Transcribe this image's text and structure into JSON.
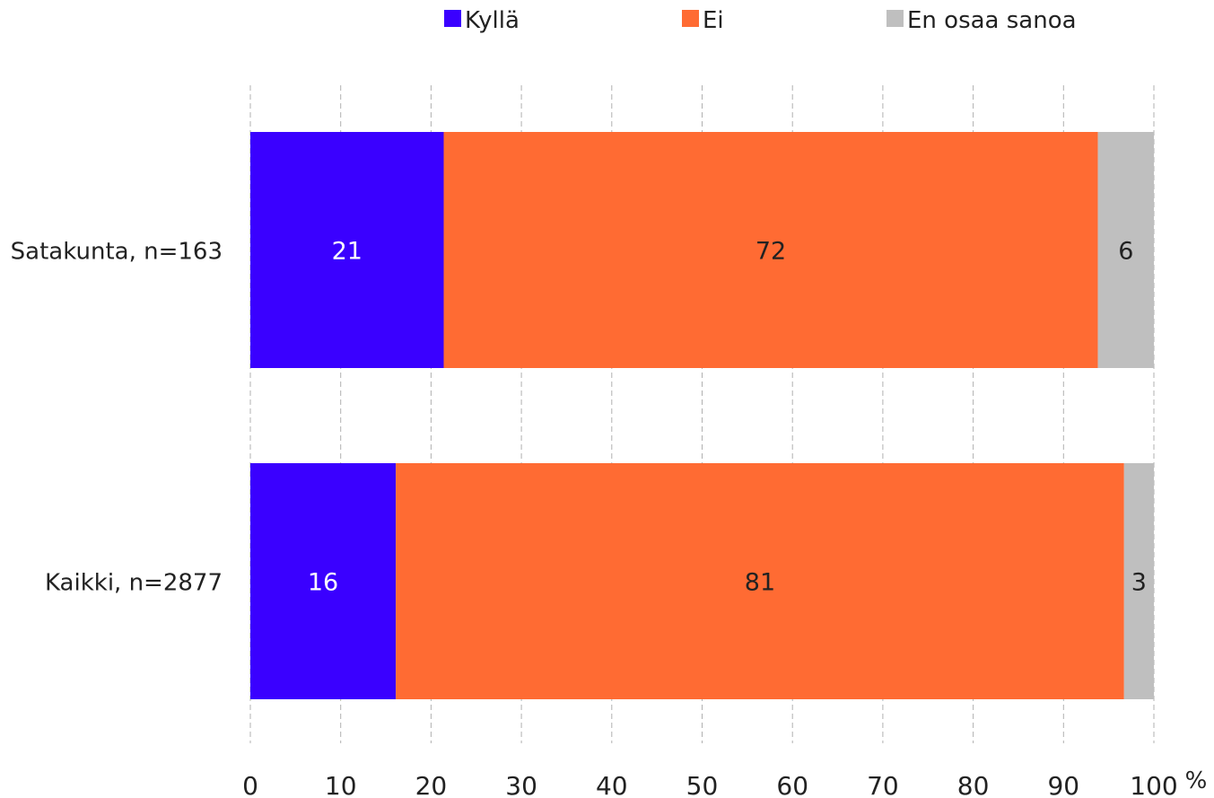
{
  "chart_data": {
    "type": "bar",
    "orientation": "horizontal",
    "stacked": true,
    "categories": [
      "Satakunta, n=163",
      "Kaikki, n=2877"
    ],
    "series": [
      {
        "name": "Kyllä",
        "color": "#3a00ff",
        "values": [
          21.4,
          16.1
        ],
        "labels": [
          "21",
          "16"
        ],
        "label_color": "#ffffff"
      },
      {
        "name": "Ei",
        "color": "#ff6b33",
        "values": [
          72.4,
          80.6
        ],
        "labels": [
          "72",
          "81"
        ],
        "label_color": "#222222"
      },
      {
        "name": "En osaa sanoa",
        "color": "#bfbfbf",
        "values": [
          6.2,
          3.3
        ],
        "labels": [
          "6",
          "3"
        ],
        "label_color": "#222222"
      }
    ],
    "xlim": [
      0,
      100
    ],
    "xticks": [
      0,
      10,
      20,
      30,
      40,
      50,
      60,
      70,
      80,
      90,
      100
    ],
    "xunit": "%",
    "grid": "vertical-dashed",
    "legend_position": "top"
  }
}
